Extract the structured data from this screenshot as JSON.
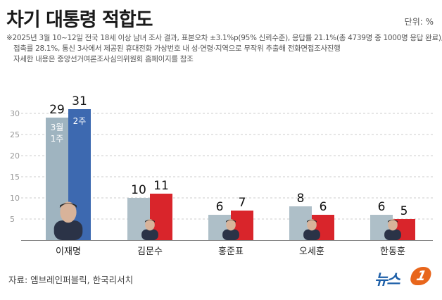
{
  "title": "차기 대통령 적합도",
  "unit_label": "단위: %",
  "notes": [
    "※2025년 3월 10~12일 전국 18세 이상 남녀 조사 결과, 표본오차 ±3.1%p(95% 신뢰수준), 응답률 21.1%(총 4739명 중 1000명 응답 완료),",
    "접촉률 28.1%, 통신 3사에서 제공된 휴대전화 가상번호 내 성·연령·지역으로 무작위 추출해 전화면접조사진행",
    "자세한 내용은 중앙선거여론조사심의위원회 홈페이지를 참조"
  ],
  "source": "자료: 엠브레인퍼블릭, 한국리서치",
  "logo_text": "뉴스",
  "logo_badge": "1",
  "chart_data": {
    "type": "bar",
    "categories": [
      "이재명",
      "김문수",
      "홍준표",
      "오세훈",
      "한동훈"
    ],
    "series": [
      {
        "name": "3월 1주",
        "values": [
          29,
          10,
          6,
          8,
          6
        ],
        "color_primary": "#aebfc8",
        "color_highlight": "#9fb4c0"
      },
      {
        "name": "2주",
        "values": [
          31,
          11,
          7,
          6,
          5
        ],
        "color_primary": "#d9252b",
        "color_highlight": "#3d69b0"
      }
    ],
    "ylim": [
      0,
      33
    ],
    "yticks": [
      5,
      10,
      15,
      20,
      25,
      30
    ],
    "grid": true,
    "legend_placement": "inside first category bars"
  }
}
